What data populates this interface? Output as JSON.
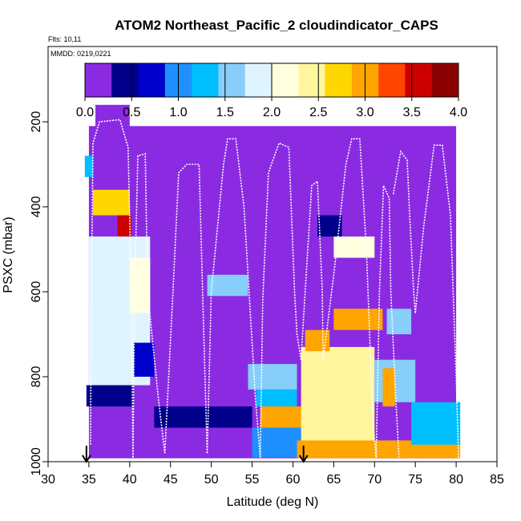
{
  "chart_data": {
    "type": "heatmap",
    "title": "ATOM2 Northeast_Pacific_2 cloudindicator_CAPS",
    "flights_label": "Flts: 10,11",
    "mmdd_label": "MMDD: 0219,0221",
    "xlabel": "Latitude (deg N)",
    "ylabel": "PSXC (mbar)",
    "xlim": [
      30,
      85
    ],
    "ylim": [
      1000,
      0
    ],
    "xticks": [
      30,
      35,
      40,
      45,
      50,
      55,
      60,
      65,
      70,
      75,
      80,
      85
    ],
    "yticks": [
      200,
      400,
      600,
      800,
      1000
    ],
    "colorbar": {
      "range": [
        0,
        4
      ],
      "ticks": [
        "0.0",
        "0.5",
        "1.0",
        "1.5",
        "2.0",
        "2.5",
        "3.0",
        "3.5",
        "4.0"
      ],
      "colors": [
        "#8a2be2",
        "#00008b",
        "#0000cd",
        "#1e90ff",
        "#00bfff",
        "#87cefa",
        "#e0f4ff",
        "#ffffe0",
        "#fff59d",
        "#ffd700",
        "#ffa500",
        "#ff4500",
        "#cd0000",
        "#8b0000"
      ]
    },
    "background_value": 0.0,
    "cells": [
      {
        "lat": [
          35.8,
          40.0
        ],
        "p": [
          160,
          240
        ],
        "v": 0.0
      },
      {
        "lat": [
          35.0,
          80.0
        ],
        "p": [
          210,
          1000
        ],
        "v": 0.0
      },
      {
        "lat": [
          34.5,
          35.5
        ],
        "p": [
          280,
          330
        ],
        "v": 1.4
      },
      {
        "lat": [
          35.5,
          40.0
        ],
        "p": [
          360,
          420
        ],
        "v": 2.6
      },
      {
        "lat": [
          38.5,
          40.2
        ],
        "p": [
          420,
          470
        ],
        "v": 3.5
      },
      {
        "lat": [
          35.0,
          42.5
        ],
        "p": [
          470,
          820
        ],
        "v": 1.8
      },
      {
        "lat": [
          40.0,
          42.5
        ],
        "p": [
          520,
          650
        ],
        "v": 2.2
      },
      {
        "lat": [
          40.5,
          43.0
        ],
        "p": [
          720,
          800
        ],
        "v": 0.6
      },
      {
        "lat": [
          34.7,
          40.5
        ],
        "p": [
          820,
          870
        ],
        "v": 0.3
      },
      {
        "lat": [
          43.0,
          55.0
        ],
        "p": [
          870,
          920
        ],
        "v": 0.4
      },
      {
        "lat": [
          49.5,
          54.5
        ],
        "p": [
          560,
          610
        ],
        "v": 1.7
      },
      {
        "lat": [
          54.5,
          60.5
        ],
        "p": [
          770,
          830
        ],
        "v": 1.6
      },
      {
        "lat": [
          55.5,
          60.5
        ],
        "p": [
          830,
          870
        ],
        "v": 1.3
      },
      {
        "lat": [
          56.0,
          61.5
        ],
        "p": [
          870,
          920
        ],
        "v": 3.0
      },
      {
        "lat": [
          55.0,
          61.0
        ],
        "p": [
          920,
          990
        ],
        "v": 1.1
      },
      {
        "lat": [
          61.0,
          70.0
        ],
        "p": [
          730,
          1000
        ],
        "v": 2.4
      },
      {
        "lat": [
          61.5,
          64.5
        ],
        "p": [
          690,
          740
        ],
        "v": 3.0
      },
      {
        "lat": [
          65.0,
          71.0
        ],
        "p": [
          640,
          690
        ],
        "v": 3.0
      },
      {
        "lat": [
          65.0,
          70.0
        ],
        "p": [
          470,
          520
        ],
        "v": 2.2
      },
      {
        "lat": [
          63.0,
          66.0
        ],
        "p": [
          420,
          470
        ],
        "v": 0.4
      },
      {
        "lat": [
          60.5,
          80.5
        ],
        "p": [
          950,
          1000
        ],
        "v": 3.0
      },
      {
        "lat": [
          70.0,
          75.0
        ],
        "p": [
          760,
          860
        ],
        "v": 1.6
      },
      {
        "lat": [
          71.5,
          74.5
        ],
        "p": [
          640,
          700
        ],
        "v": 1.5
      },
      {
        "lat": [
          74.5,
          80.5
        ],
        "p": [
          860,
          960
        ],
        "v": 1.2
      },
      {
        "lat": [
          71.0,
          72.5
        ],
        "p": [
          780,
          870
        ],
        "v": 3.0
      }
    ],
    "flight_tracks": [
      {
        "points": [
          [
            35.2,
            960
          ],
          [
            35.3,
            620
          ],
          [
            35.5,
            250
          ],
          [
            36.3,
            200
          ],
          [
            38.8,
            195
          ],
          [
            39.8,
            260
          ],
          [
            40.2,
            600
          ],
          [
            40.4,
            990
          ]
        ]
      },
      {
        "points": [
          [
            40.4,
            990
          ],
          [
            40.6,
            600
          ],
          [
            41.0,
            280
          ],
          [
            41.9,
            275
          ],
          [
            42.2,
            600
          ],
          [
            43.5,
            850
          ],
          [
            44.3,
            980
          ]
        ]
      },
      {
        "points": [
          [
            44.3,
            980
          ],
          [
            45.3,
            600
          ],
          [
            46.0,
            320
          ],
          [
            47.0,
            300
          ],
          [
            48.5,
            300
          ],
          [
            49.0,
            650
          ],
          [
            49.5,
            980
          ]
        ]
      },
      {
        "points": [
          [
            49.5,
            980
          ],
          [
            50.0,
            600
          ],
          [
            51.5,
            300
          ],
          [
            52.0,
            240
          ],
          [
            53.0,
            240
          ],
          [
            54.0,
            400
          ],
          [
            55.4,
            850
          ],
          [
            56.0,
            990
          ]
        ]
      },
      {
        "points": [
          [
            56.0,
            990
          ],
          [
            56.3,
            620
          ],
          [
            57.0,
            320
          ],
          [
            58.3,
            250
          ],
          [
            59.5,
            260
          ],
          [
            60.2,
            600
          ],
          [
            60.5,
            700
          ],
          [
            61.0,
            760
          ]
        ]
      },
      {
        "points": [
          [
            61.0,
            760
          ],
          [
            61.5,
            600
          ],
          [
            62.3,
            350
          ],
          [
            63.0,
            340
          ],
          [
            63.6,
            600
          ],
          [
            63.7,
            760
          ]
        ]
      },
      {
        "points": [
          [
            63.7,
            760
          ],
          [
            65.0,
            560
          ],
          [
            66.5,
            300
          ],
          [
            67.2,
            240
          ],
          [
            68.2,
            240
          ],
          [
            69.0,
            500
          ],
          [
            69.8,
            900
          ],
          [
            70.2,
            990
          ]
        ]
      },
      {
        "points": [
          [
            70.2,
            990
          ],
          [
            70.6,
            600
          ],
          [
            71.1,
            350
          ],
          [
            71.8,
            380
          ],
          [
            72.0,
            600
          ],
          [
            72.6,
            850
          ],
          [
            73.0,
            990
          ]
        ]
      },
      {
        "points": [
          [
            72.3,
            370
          ],
          [
            73.2,
            270
          ],
          [
            74.0,
            290
          ],
          [
            74.3,
            420
          ],
          [
            74.8,
            600
          ],
          [
            75.0,
            650
          ]
        ]
      },
      {
        "points": [
          [
            75.0,
            650
          ],
          [
            76.0,
            450
          ],
          [
            77.3,
            255
          ],
          [
            78.3,
            255
          ],
          [
            79.3,
            420
          ],
          [
            80.0,
            800
          ],
          [
            80.3,
            990
          ]
        ]
      }
    ],
    "markers": [
      {
        "lat": 34.7,
        "label": "flight-start"
      },
      {
        "lat": 61.3,
        "label": "flight-start"
      }
    ]
  }
}
